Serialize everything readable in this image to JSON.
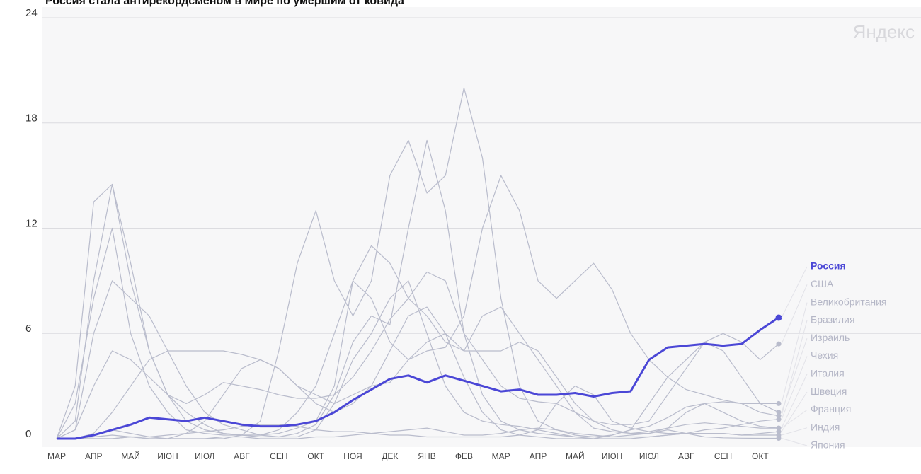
{
  "chart_data": {
    "type": "line",
    "title": "Россия стала антирекордсменом в мире по умершим от ковида",
    "annotation": "Яндекс",
    "categories": [
      "МАР",
      null,
      "АПР",
      null,
      "МАЙ",
      null,
      "ИЮН",
      null,
      "ИЮЛ",
      null,
      "АВГ",
      null,
      "СЕН",
      null,
      "ОКТ",
      null,
      "НОЯ",
      null,
      "ДЕК",
      null,
      "ЯНВ",
      null,
      "ФЕВ",
      null,
      "МАР",
      null,
      "АПР",
      null,
      "МАЙ",
      null,
      "ИЮН",
      null,
      "ИЮЛ",
      null,
      "АВГ",
      null,
      "СЕН",
      null,
      "ОКТ",
      null
    ],
    "ylim": [
      0,
      24
    ],
    "yticks": [
      0,
      6,
      12,
      18,
      24
    ],
    "grid": true,
    "series": [
      {
        "name": "Россия",
        "color": "#4b47d6",
        "values": [
          0,
          0,
          0.2,
          0.5,
          0.8,
          1.2,
          1.1,
          1.0,
          1.2,
          1.0,
          0.8,
          0.7,
          0.7,
          0.8,
          1.0,
          1.5,
          2.2,
          2.8,
          3.4,
          3.6,
          3.2,
          3.6,
          3.3,
          3.0,
          2.7,
          2.8,
          2.5,
          2.5,
          2.6,
          2.4,
          2.6,
          2.7,
          4.5,
          5.2,
          5.3,
          5.4,
          5.3,
          5.4,
          6.2,
          6.9
        ]
      },
      {
        "name": "США",
        "color": "#b9bccc",
        "values": [
          0,
          0.5,
          3,
          5,
          4.5,
          3.5,
          2.5,
          2,
          2.5,
          3.2,
          3,
          2.8,
          2.5,
          2.3,
          2.3,
          2.5,
          3.5,
          5,
          6.8,
          8,
          9.5,
          9,
          6,
          4.5,
          3,
          2.3,
          2.1,
          2,
          1.5,
          1,
          0.8,
          0.8,
          1,
          2.5,
          4,
          5.5,
          6,
          5.5,
          4.5,
          5.4
        ]
      },
      {
        "name": "Великобритания",
        "color": "#b9bccc",
        "values": [
          0,
          1,
          9,
          14.5,
          10,
          5,
          2.5,
          1.5,
          0.8,
          0.3,
          0.2,
          0.1,
          0.1,
          0.3,
          0.8,
          2.5,
          5.5,
          7,
          6.5,
          12,
          17,
          13,
          6,
          2.5,
          1,
          0.5,
          0.3,
          0.2,
          0.1,
          0.1,
          0.2,
          0.5,
          0.7,
          1.2,
          1.8,
          2,
          2.1,
          2,
          2,
          2
        ]
      },
      {
        "name": "Бразилия",
        "color": "#b9bccc",
        "values": [
          0,
          0,
          0.3,
          1.5,
          3,
          4.5,
          5,
          5,
          5,
          5,
          4.8,
          4.5,
          4,
          3,
          2.5,
          2,
          2.5,
          3,
          3.2,
          4.5,
          5,
          5.2,
          7,
          12,
          15,
          13,
          9,
          8,
          9,
          10,
          8.5,
          6,
          4.5,
          3.5,
          2.8,
          2.5,
          2.2,
          2,
          1.5,
          1.3
        ]
      },
      {
        "name": "Израиль",
        "color": "#b9bccc",
        "values": [
          0,
          0,
          0.2,
          0.5,
          0.3,
          0.1,
          0,
          0.3,
          1,
          2.5,
          4,
          4.5,
          4,
          3,
          2,
          1.5,
          2,
          3,
          5,
          7,
          7.5,
          6,
          3.5,
          1.5,
          0.5,
          0.2,
          0.1,
          0,
          0,
          0,
          0.2,
          0.5,
          2,
          3.5,
          4.5,
          5.5,
          5,
          3.5,
          2,
          1.5
        ]
      },
      {
        "name": "Чехия",
        "color": "#b9bccc",
        "values": [
          0,
          0,
          0.1,
          0.2,
          0.1,
          0,
          0,
          0,
          0,
          0,
          0.2,
          1,
          5,
          10,
          13,
          9,
          7,
          9,
          15,
          17,
          14,
          15,
          20,
          16,
          8,
          3,
          1,
          0.5,
          0.2,
          0.1,
          0.1,
          0.1,
          0.1,
          0.2,
          0.3,
          0.5,
          0.6,
          0.8,
          1,
          1.1
        ]
      },
      {
        "name": "Италия",
        "color": "#b9bccc",
        "values": [
          0,
          3,
          13.5,
          14.5,
          9,
          5,
          2.5,
          1,
          0.5,
          0.3,
          0.2,
          0.2,
          0.3,
          0.6,
          1,
          3,
          9,
          11,
          10,
          8,
          7,
          5.5,
          5,
          7,
          7.5,
          6,
          4.5,
          3,
          1.5,
          0.6,
          0.4,
          0.3,
          0.4,
          0.6,
          0.8,
          0.9,
          0.8,
          0.7,
          0.6,
          0.6
        ]
      },
      {
        "name": "Швеция",
        "color": "#b9bccc",
        "values": [
          0,
          0.5,
          6,
          9,
          8,
          7,
          5,
          3,
          1.5,
          0.8,
          0.5,
          0.2,
          0.1,
          0.1,
          0.5,
          2,
          4.5,
          6,
          8,
          9,
          6,
          3,
          1.5,
          1,
          0.8,
          0.7,
          0.5,
          0.3,
          0.1,
          0,
          0,
          0,
          0.1,
          0.2,
          0.3,
          0.3,
          0.3,
          0.2,
          0.3,
          0.4
        ]
      },
      {
        "name": "Франция",
        "color": "#b9bccc",
        "values": [
          0,
          2,
          8,
          12,
          6,
          3,
          1.5,
          0.5,
          0.3,
          0.2,
          0.2,
          0.2,
          0.5,
          1.5,
          3,
          6,
          9,
          8,
          5.5,
          4.5,
          5.5,
          6,
          5,
          5,
          5,
          5.5,
          5,
          3.5,
          2,
          1,
          0.5,
          0.3,
          0.3,
          0.6,
          1.5,
          2,
          1.5,
          1,
          0.7,
          0.6
        ]
      },
      {
        "name": "Индия",
        "color": "#b9bccc",
        "values": [
          0,
          0,
          0,
          0,
          0.1,
          0.1,
          0.2,
          0.3,
          0.4,
          0.5,
          0.7,
          0.8,
          0.8,
          0.7,
          0.5,
          0.4,
          0.4,
          0.3,
          0.2,
          0.2,
          0.1,
          0.1,
          0.1,
          0.1,
          0.1,
          0.2,
          0.5,
          2,
          3,
          2.5,
          1,
          0.6,
          0.4,
          0.3,
          0.3,
          0.3,
          0.3,
          0.2,
          0.2,
          0.2
        ]
      },
      {
        "name": "Япония",
        "color": "#b9bccc",
        "values": [
          0,
          0,
          0,
          0,
          0.1,
          0,
          0,
          0,
          0,
          0.1,
          0.1,
          0,
          0,
          0,
          0.1,
          0.1,
          0.2,
          0.3,
          0.4,
          0.5,
          0.6,
          0.4,
          0.2,
          0.2,
          0.3,
          0.5,
          0.6,
          0.5,
          0.3,
          0.2,
          0.1,
          0.2,
          0.3,
          0.5,
          0.3,
          0.1,
          0.05,
          0.03,
          0.02,
          0.02
        ]
      }
    ]
  }
}
